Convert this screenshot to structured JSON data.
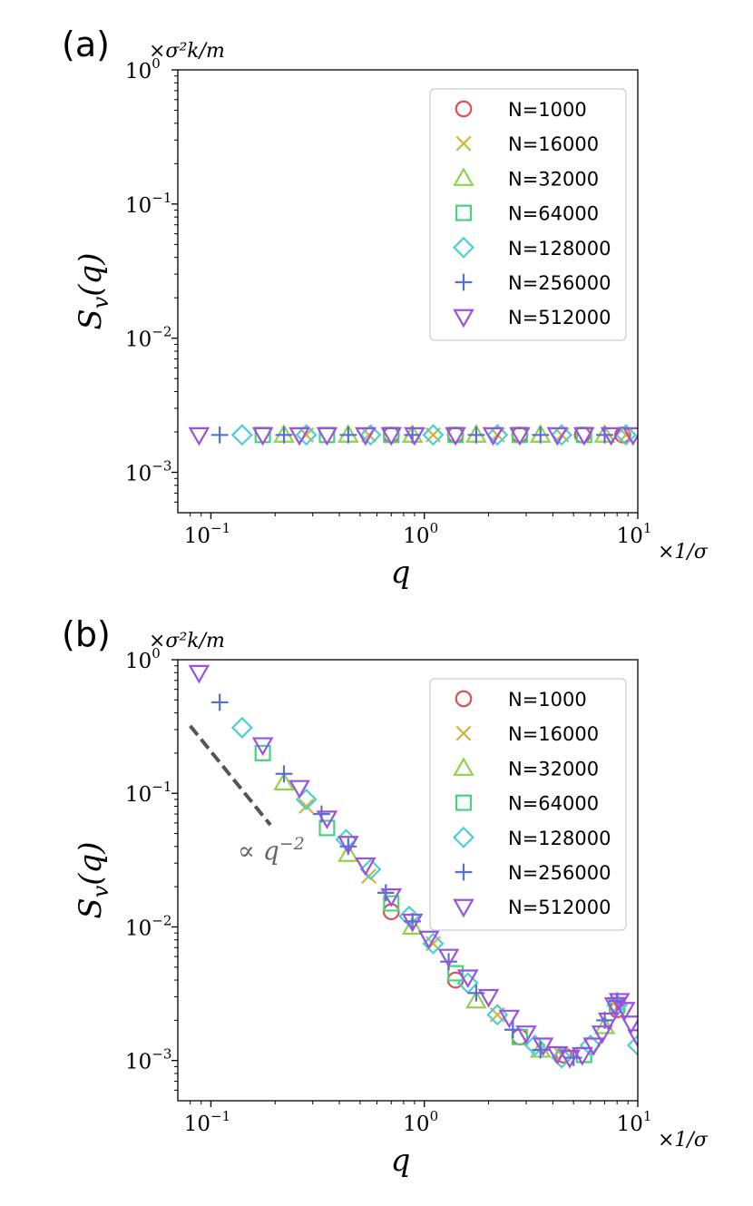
{
  "colors": {
    "N1000": "#d9534f",
    "N16000": "#cdb63c",
    "N32000": "#8fd44a",
    "N64000": "#48d27d",
    "N128000": "#4ccfd4",
    "N256000": "#5470d8",
    "N512000": "#9a52e0",
    "guide": "#555555"
  },
  "chart_data": [
    {
      "type": "scatter",
      "panel_label": "(a)",
      "xlabel": "q",
      "ylabel": "S_v(q)",
      "x_unit": "×1/σ",
      "y_unit": "×σ²k/m",
      "xscale": "log",
      "yscale": "log",
      "xlim": [
        0.07,
        10
      ],
      "ylim": [
        0.0005,
        1
      ],
      "x_ticks": [
        "10^-1",
        "10^0",
        "10^1"
      ],
      "y_ticks": [
        "10^-3",
        "10^-2",
        "10^-1",
        "10^0"
      ],
      "legend_location": "top-right",
      "series": [
        {
          "name": "N=1000",
          "marker": "circle",
          "color_key": "N1000",
          "points": [
            [
              0.7,
              0.0019
            ],
            [
              1.4,
              0.0019
            ],
            [
              2.8,
              0.0019
            ],
            [
              5.5,
              0.0019
            ],
            [
              8.5,
              0.0019
            ]
          ]
        },
        {
          "name": "N=16000",
          "marker": "x",
          "color_key": "N16000",
          "points": [
            [
              0.28,
              0.0019
            ],
            [
              0.55,
              0.0019
            ],
            [
              1.1,
              0.0019
            ],
            [
              2.2,
              0.0019
            ],
            [
              4.4,
              0.0019
            ],
            [
              8.8,
              0.0019
            ]
          ]
        },
        {
          "name": "N=32000",
          "marker": "triangle-up",
          "color_key": "N32000",
          "points": [
            [
              0.22,
              0.0019
            ],
            [
              0.44,
              0.0019
            ],
            [
              0.88,
              0.0019
            ],
            [
              1.75,
              0.0019
            ],
            [
              3.5,
              0.0019
            ],
            [
              7.0,
              0.0019
            ]
          ]
        },
        {
          "name": "N=64000",
          "marker": "square",
          "color_key": "N64000",
          "points": [
            [
              0.175,
              0.0019
            ],
            [
              0.35,
              0.0019
            ],
            [
              0.7,
              0.0019
            ],
            [
              1.4,
              0.0019
            ],
            [
              2.8,
              0.0019
            ],
            [
              5.6,
              0.0019
            ]
          ]
        },
        {
          "name": "N=128000",
          "marker": "diamond",
          "color_key": "N128000",
          "points": [
            [
              0.14,
              0.0019
            ],
            [
              0.28,
              0.0019
            ],
            [
              0.56,
              0.0019
            ],
            [
              1.1,
              0.0019
            ],
            [
              2.2,
              0.0019
            ],
            [
              4.4,
              0.0019
            ],
            [
              8.8,
              0.0019
            ]
          ]
        },
        {
          "name": "N=256000",
          "marker": "plus",
          "color_key": "N256000",
          "points": [
            [
              0.11,
              0.0019
            ],
            [
              0.22,
              0.0019
            ],
            [
              0.44,
              0.0019
            ],
            [
              0.88,
              0.0019
            ],
            [
              1.75,
              0.0019
            ],
            [
              3.5,
              0.0019
            ],
            [
              7.0,
              0.0019
            ]
          ]
        },
        {
          "name": "N=512000",
          "marker": "triangle-down",
          "color_key": "N512000",
          "points": [
            [
              0.088,
              0.0019
            ],
            [
              0.175,
              0.0019
            ],
            [
              0.26,
              0.0019
            ],
            [
              0.35,
              0.0019
            ],
            [
              0.53,
              0.0019
            ],
            [
              0.7,
              0.0019
            ],
            [
              0.9,
              0.0019
            ],
            [
              1.4,
              0.0019
            ],
            [
              2.1,
              0.0019
            ],
            [
              2.8,
              0.0019
            ],
            [
              4.2,
              0.0019
            ],
            [
              5.6,
              0.0019
            ],
            [
              7.5,
              0.0019
            ],
            [
              9.5,
              0.0019
            ]
          ]
        }
      ]
    },
    {
      "type": "scatter",
      "panel_label": "(b)",
      "xlabel": "q",
      "ylabel": "S_v(q)",
      "x_unit": "×1/σ",
      "y_unit": "×σ²k/m",
      "xscale": "log",
      "yscale": "log",
      "xlim": [
        0.07,
        10
      ],
      "ylim": [
        0.0005,
        1
      ],
      "x_ticks": [
        "10^-1",
        "10^0",
        "10^1"
      ],
      "y_ticks": [
        "10^-3",
        "10^-2",
        "10^-1",
        "10^0"
      ],
      "legend_location": "top-right",
      "annotation": {
        "text": "∝ q",
        "exponent": "−2",
        "guide": {
          "x": [
            0.08,
            0.19
          ],
          "y": [
            0.32,
            0.058
          ]
        }
      },
      "series": [
        {
          "name": "N=1000",
          "marker": "circle",
          "color_key": "N1000",
          "points": [
            [
              0.7,
              0.013
            ],
            [
              1.4,
              0.004
            ],
            [
              2.8,
              0.0015
            ],
            [
              4.5,
              0.0011
            ],
            [
              8.0,
              0.0024
            ]
          ]
        },
        {
          "name": "N=16000",
          "marker": "x",
          "color_key": "N16000",
          "points": [
            [
              0.28,
              0.08
            ],
            [
              0.55,
              0.024
            ],
            [
              1.1,
              0.0075
            ],
            [
              2.2,
              0.0022
            ],
            [
              4.4,
              0.0011
            ],
            [
              8.0,
              0.0025
            ]
          ]
        },
        {
          "name": "N=32000",
          "marker": "triangle-up",
          "color_key": "N32000",
          "points": [
            [
              0.22,
              0.12
            ],
            [
              0.44,
              0.035
            ],
            [
              0.88,
              0.01
            ],
            [
              1.75,
              0.0028
            ],
            [
              3.5,
              0.0012
            ],
            [
              7.0,
              0.0018
            ]
          ]
        },
        {
          "name": "N=64000",
          "marker": "square",
          "color_key": "N64000",
          "points": [
            [
              0.175,
              0.2
            ],
            [
              0.35,
              0.055
            ],
            [
              0.7,
              0.015
            ],
            [
              1.4,
              0.0045
            ],
            [
              2.8,
              0.0015
            ],
            [
              5.6,
              0.0011
            ],
            [
              8.0,
              0.0026
            ]
          ]
        },
        {
          "name": "N=128000",
          "marker": "diamond",
          "color_key": "N128000",
          "points": [
            [
              0.14,
              0.31
            ],
            [
              0.28,
              0.09
            ],
            [
              0.43,
              0.045
            ],
            [
              0.56,
              0.027
            ],
            [
              0.85,
              0.012
            ],
            [
              1.1,
              0.0075
            ],
            [
              1.6,
              0.0038
            ],
            [
              2.2,
              0.0022
            ],
            [
              3.3,
              0.0013
            ],
            [
              4.4,
              0.00105
            ],
            [
              6.0,
              0.0013
            ],
            [
              8.0,
              0.0026
            ],
            [
              10,
              0.0013
            ]
          ]
        },
        {
          "name": "N=256000",
          "marker": "plus",
          "color_key": "N256000",
          "points": [
            [
              0.11,
              0.48
            ],
            [
              0.22,
              0.14
            ],
            [
              0.33,
              0.07
            ],
            [
              0.44,
              0.04
            ],
            [
              0.66,
              0.018
            ],
            [
              0.88,
              0.011
            ],
            [
              1.3,
              0.0055
            ],
            [
              1.75,
              0.0032
            ],
            [
              2.6,
              0.0017
            ],
            [
              3.5,
              0.0012
            ],
            [
              5.0,
              0.00105
            ],
            [
              7.0,
              0.002
            ],
            [
              8.0,
              0.0028
            ]
          ]
        },
        {
          "name": "N=512000",
          "marker": "triangle-down",
          "color_key": "N512000",
          "points": [
            [
              0.088,
              0.8
            ],
            [
              0.175,
              0.23
            ],
            [
              0.26,
              0.11
            ],
            [
              0.35,
              0.065
            ],
            [
              0.44,
              0.042
            ],
            [
              0.53,
              0.029
            ],
            [
              0.7,
              0.017
            ],
            [
              0.88,
              0.011
            ],
            [
              1.05,
              0.0082
            ],
            [
              1.3,
              0.006
            ],
            [
              1.6,
              0.0042
            ],
            [
              2.0,
              0.003
            ],
            [
              2.5,
              0.0021
            ],
            [
              3.0,
              0.0016
            ],
            [
              3.6,
              0.0013
            ],
            [
              4.2,
              0.00112
            ],
            [
              4.8,
              0.00105
            ],
            [
              5.5,
              0.0011
            ],
            [
              6.2,
              0.0013
            ],
            [
              6.8,
              0.0016
            ],
            [
              7.3,
              0.002
            ],
            [
              7.8,
              0.0026
            ],
            [
              8.2,
              0.0028
            ],
            [
              8.7,
              0.0024
            ],
            [
              9.3,
              0.0019
            ],
            [
              10,
              0.0015
            ]
          ]
        }
      ]
    }
  ]
}
